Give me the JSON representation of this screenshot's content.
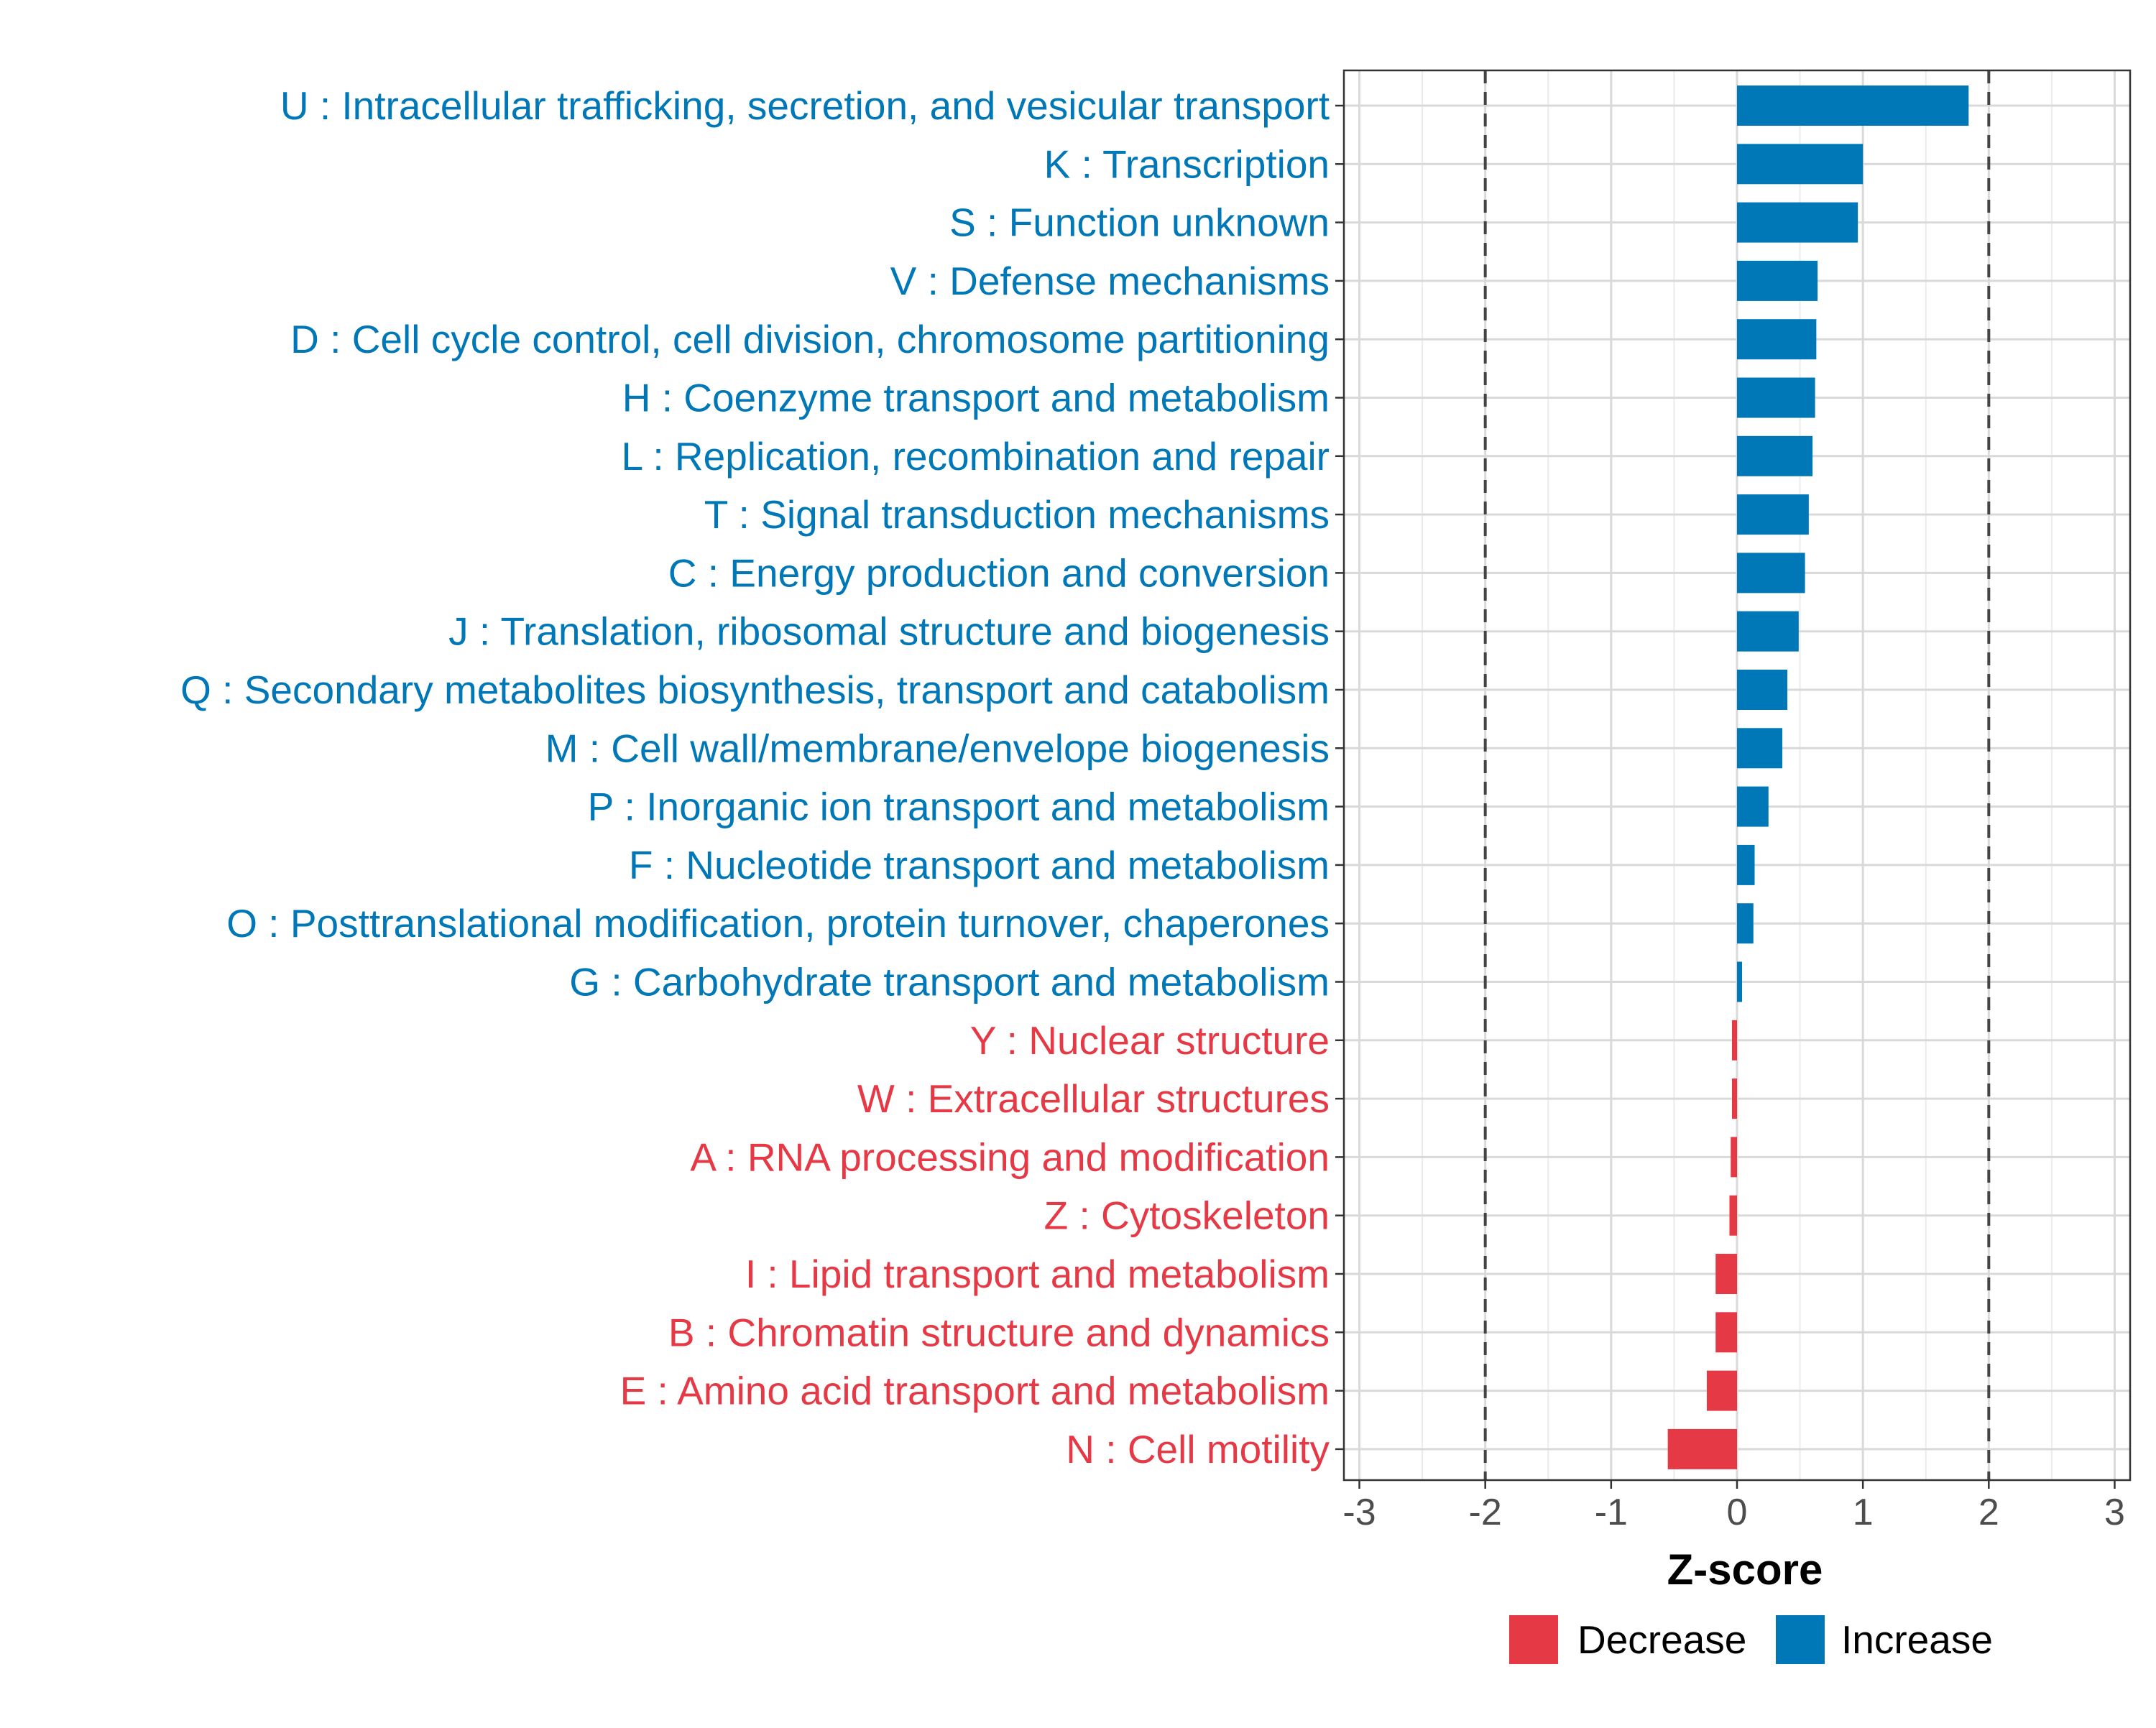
{
  "chart_data": {
    "type": "bar",
    "orientation": "horizontal",
    "xlabel": "Z-score",
    "xlim": [
      -3.1,
      3.1
    ],
    "xticks": [
      -3,
      -2,
      -1,
      0,
      1,
      2,
      3
    ],
    "tick_labels": [
      "-3",
      "-2",
      "-1",
      "0",
      "1",
      "2",
      "3"
    ],
    "reference_lines": [
      -2,
      2
    ],
    "grid": true,
    "colors": {
      "Increase": "#0077b6",
      "Decrease": "#e63946"
    },
    "legend": {
      "placement": "bottom",
      "entries": [
        {
          "label": "Decrease",
          "color": "#e63946"
        },
        {
          "label": "Increase",
          "color": "#0077b6"
        }
      ]
    },
    "categories": [
      "U : Intracellular trafficking, secretion, and vesicular transport",
      "K : Transcription",
      "S : Function unknown",
      "V : Defense mechanisms",
      "D : Cell cycle control, cell division, chromosome partitioning",
      "H : Coenzyme transport and metabolism",
      "L : Replication, recombination and repair",
      "T : Signal transduction mechanisms",
      "C : Energy production and conversion",
      "J : Translation, ribosomal structure and biogenesis",
      "Q : Secondary metabolites biosynthesis, transport and catabolism",
      "M : Cell wall/membrane/envelope biogenesis",
      "P : Inorganic ion transport and metabolism",
      "F : Nucleotide transport and metabolism",
      "O : Posttranslational modification, protein turnover, chaperones",
      "G : Carbohydrate transport and metabolism",
      "Y : Nuclear structure",
      "W : Extracellular structures",
      "A : RNA processing and modification",
      "Z : Cytoskeleton",
      "I : Lipid transport and metabolism",
      "B : Chromatin structure and dynamics",
      "E : Amino acid transport and metabolism",
      "N : Cell motility"
    ],
    "values": [
      1.84,
      1.0,
      0.96,
      0.64,
      0.63,
      0.62,
      0.6,
      0.57,
      0.54,
      0.49,
      0.4,
      0.36,
      0.25,
      0.14,
      0.13,
      0.04,
      -0.04,
      -0.04,
      -0.05,
      -0.06,
      -0.17,
      -0.17,
      -0.24,
      -0.55
    ],
    "direction": [
      "Increase",
      "Increase",
      "Increase",
      "Increase",
      "Increase",
      "Increase",
      "Increase",
      "Increase",
      "Increase",
      "Increase",
      "Increase",
      "Increase",
      "Increase",
      "Increase",
      "Increase",
      "Increase",
      "Decrease",
      "Decrease",
      "Decrease",
      "Decrease",
      "Decrease",
      "Decrease",
      "Decrease",
      "Decrease"
    ]
  }
}
